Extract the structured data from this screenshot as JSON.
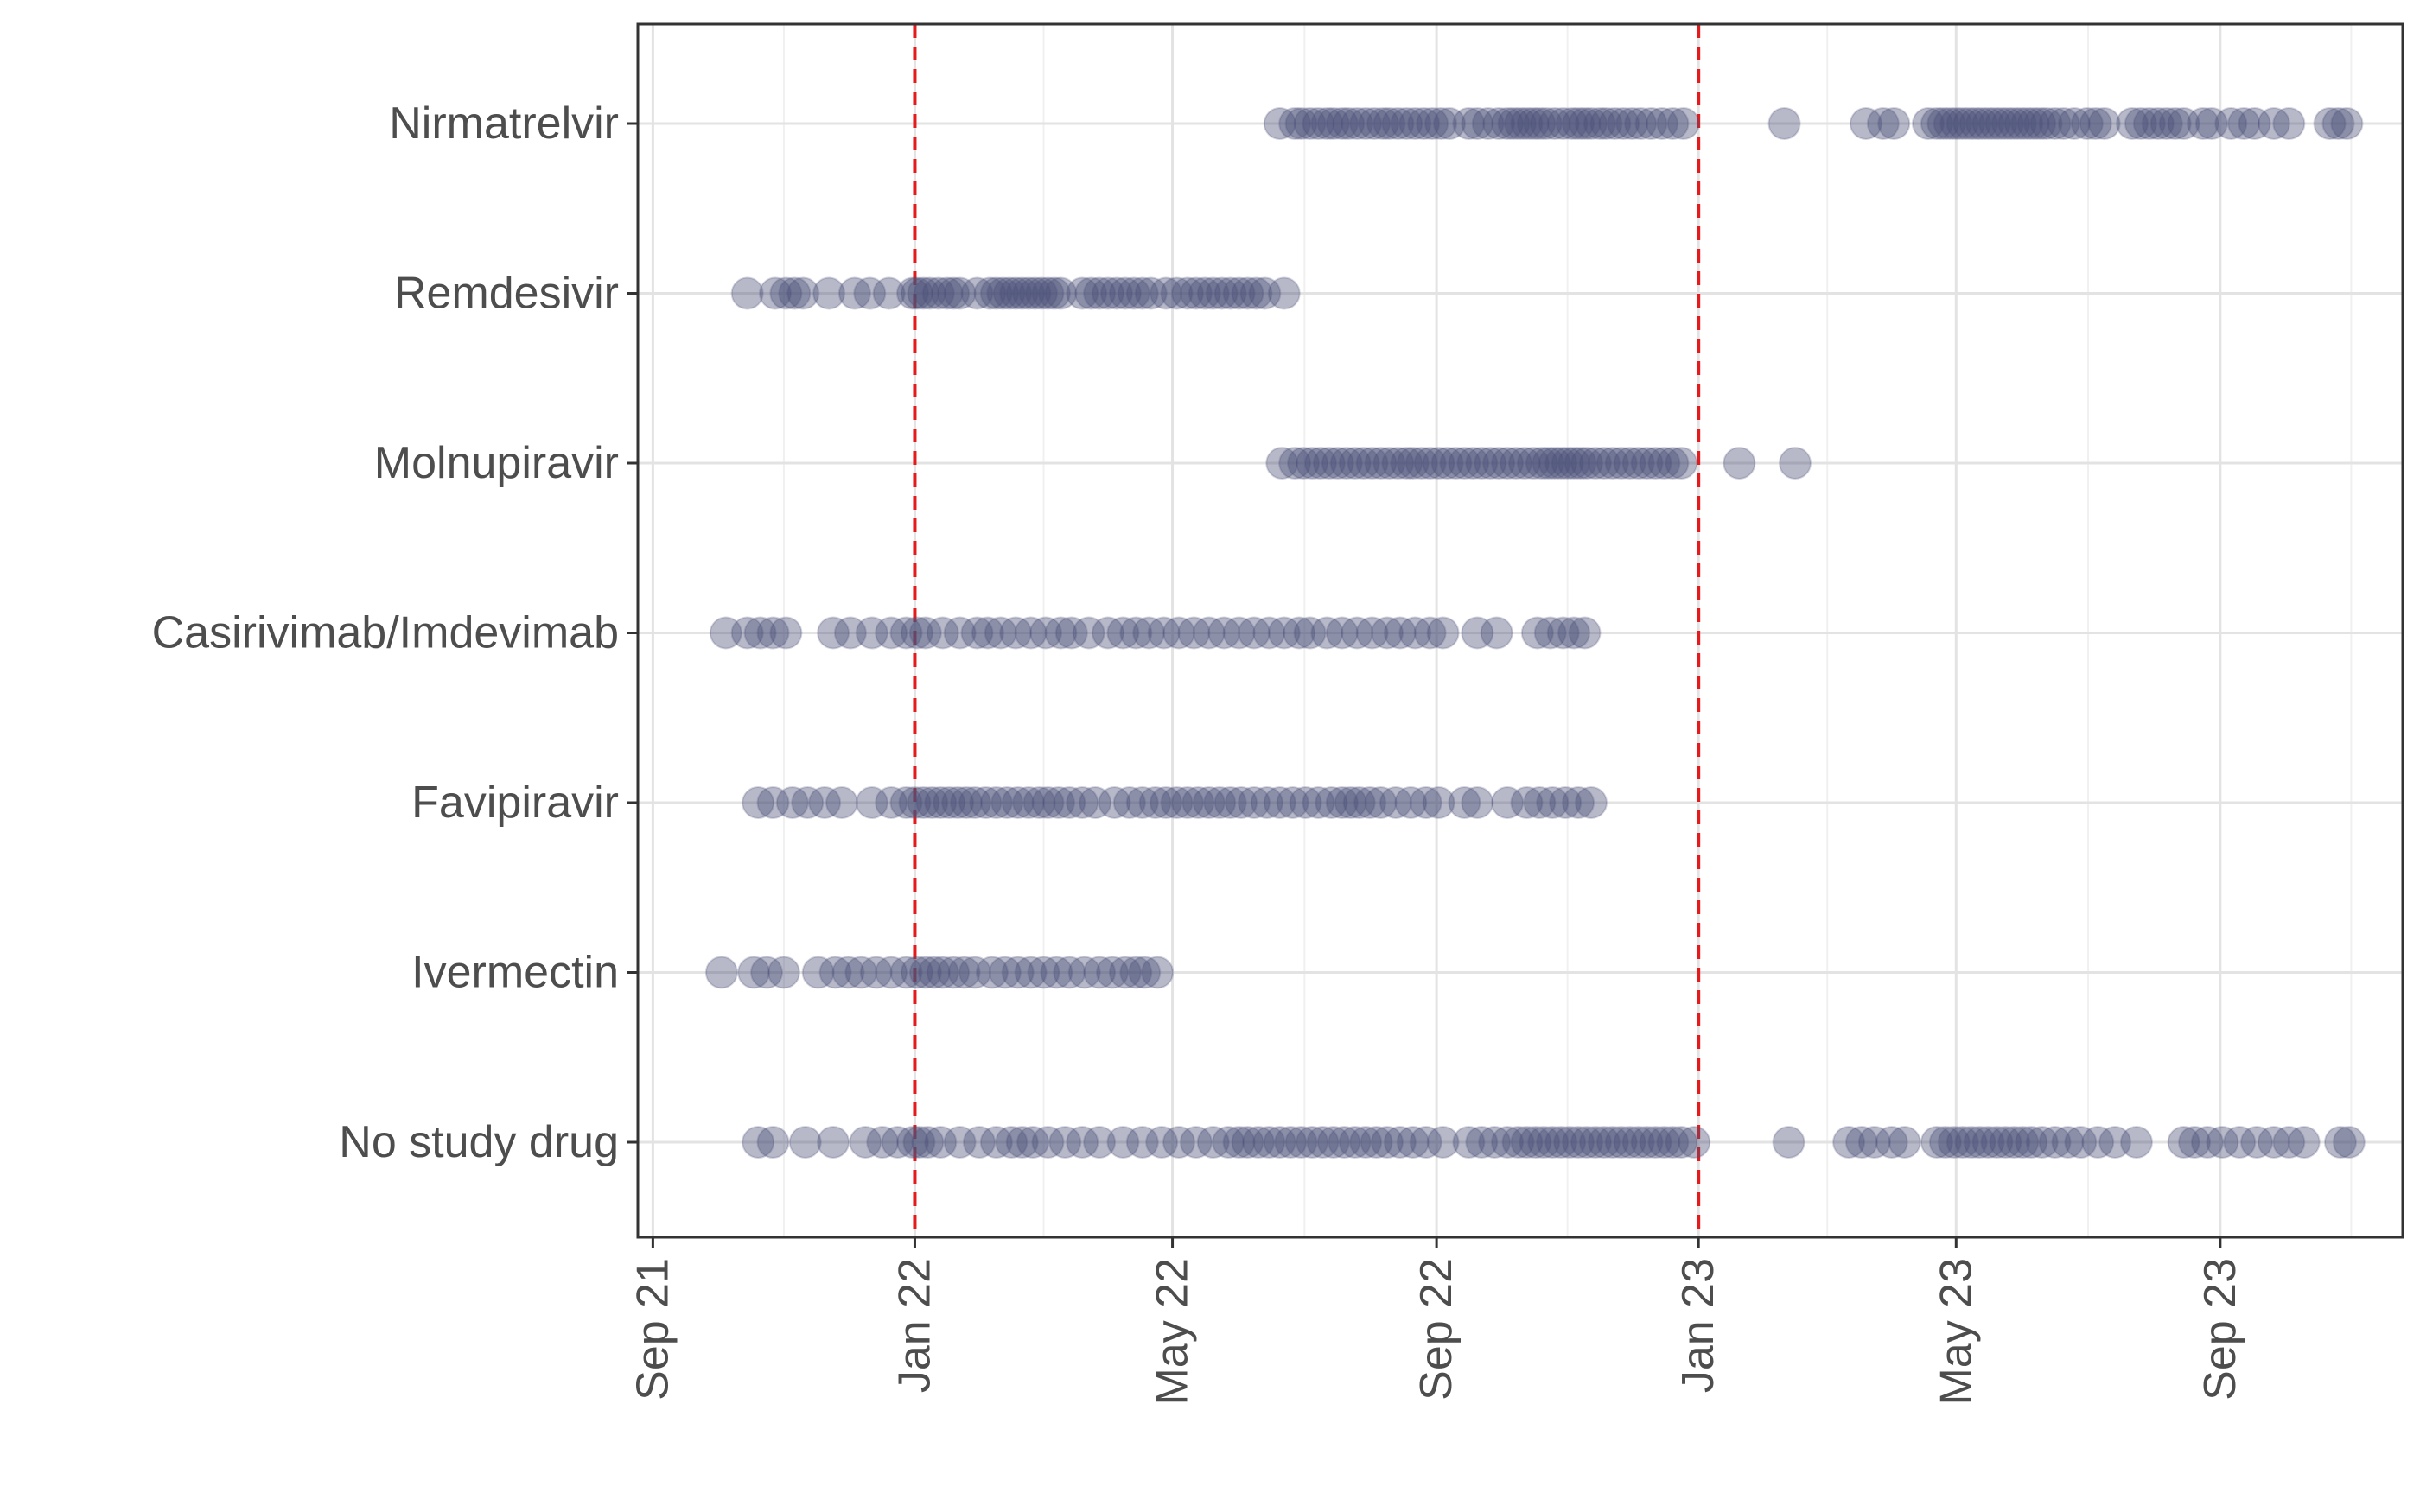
{
  "chart_data": {
    "type": "scatter",
    "title": "",
    "xlabel": "",
    "ylabel": "",
    "x_axis": {
      "type": "date",
      "range": [
        "2021-08-25",
        "2023-11-25"
      ],
      "ticks": [
        {
          "date": "2021-09-01",
          "label": "Sep 21"
        },
        {
          "date": "2022-01-01",
          "label": "Jan 22"
        },
        {
          "date": "2022-05-01",
          "label": "May 22"
        },
        {
          "date": "2022-09-01",
          "label": "Sep 22"
        },
        {
          "date": "2023-01-01",
          "label": "Jan 23"
        },
        {
          "date": "2023-05-01",
          "label": "May 23"
        },
        {
          "date": "2023-09-01",
          "label": "Sep 23"
        }
      ]
    },
    "reference_lines": [
      {
        "date": "2022-01-01",
        "color": "#e41a1c",
        "style": "dashed"
      },
      {
        "date": "2023-01-01",
        "color": "#e41a1c",
        "style": "dashed"
      }
    ],
    "grid": true,
    "point_color": "#4a5078",
    "point_opacity": 0.4,
    "categories": [
      "Nirmatrelvir",
      "Remdesivir",
      "Molnupiravir",
      "Casirivimab/Imdevimab",
      "Favipiravir",
      "Ivermectin",
      "No study drug"
    ],
    "series": [
      {
        "category": "Nirmatrelvir",
        "dates": [
          "2022-06-20",
          "2022-06-27",
          "2022-06-30",
          "2022-07-04",
          "2022-07-08",
          "2022-07-12",
          "2022-07-15",
          "2022-07-19",
          "2022-07-22",
          "2022-07-26",
          "2022-07-30",
          "2022-08-03",
          "2022-08-07",
          "2022-08-10",
          "2022-08-14",
          "2022-08-18",
          "2022-08-22",
          "2022-08-26",
          "2022-08-30",
          "2022-09-03",
          "2022-09-07",
          "2022-09-16",
          "2022-09-20",
          "2022-09-25",
          "2022-09-30",
          "2022-10-04",
          "2022-10-07",
          "2022-10-10",
          "2022-10-13",
          "2022-10-16",
          "2022-10-19",
          "2022-10-22",
          "2022-10-26",
          "2022-10-30",
          "2022-11-03",
          "2022-11-06",
          "2022-11-09",
          "2022-11-12",
          "2022-11-16",
          "2022-11-19",
          "2022-11-23",
          "2022-11-27",
          "2022-12-01",
          "2022-12-05",
          "2022-12-10",
          "2022-12-15",
          "2022-12-20",
          "2022-12-25",
          "2023-02-10",
          "2023-03-20",
          "2023-03-28",
          "2023-04-02",
          "2023-04-18",
          "2023-04-22",
          "2023-04-25",
          "2023-04-28",
          "2023-05-01",
          "2023-05-04",
          "2023-05-07",
          "2023-05-10",
          "2023-05-13",
          "2023-05-16",
          "2023-05-19",
          "2023-05-22",
          "2023-05-25",
          "2023-05-28",
          "2023-05-31",
          "2023-06-03",
          "2023-06-06",
          "2023-06-09",
          "2023-06-12",
          "2023-06-16",
          "2023-06-20",
          "2023-06-25",
          "2023-07-01",
          "2023-07-05",
          "2023-07-09",
          "2023-07-22",
          "2023-07-26",
          "2023-07-30",
          "2023-08-03",
          "2023-08-07",
          "2023-08-11",
          "2023-08-15",
          "2023-08-24",
          "2023-08-28",
          "2023-09-06",
          "2023-09-12",
          "2023-09-17",
          "2023-09-26",
          "2023-10-03",
          "2023-10-22",
          "2023-10-26",
          "2023-10-30"
        ]
      },
      {
        "category": "Remdesivir",
        "dates": [
          "2021-10-15",
          "2021-10-28",
          "2021-11-02",
          "2021-11-06",
          "2021-11-10",
          "2021-11-22",
          "2021-12-04",
          "2021-12-11",
          "2021-12-20",
          "2021-12-31",
          "2022-01-02",
          "2022-01-05",
          "2022-01-08",
          "2022-01-12",
          "2022-01-16",
          "2022-01-19",
          "2022-01-22",
          "2022-01-30",
          "2022-02-05",
          "2022-02-08",
          "2022-02-11",
          "2022-02-14",
          "2022-02-17",
          "2022-02-20",
          "2022-02-23",
          "2022-02-26",
          "2022-03-01",
          "2022-03-04",
          "2022-03-07",
          "2022-03-10",
          "2022-03-20",
          "2022-03-24",
          "2022-03-28",
          "2022-04-01",
          "2022-04-05",
          "2022-04-09",
          "2022-04-13",
          "2022-04-17",
          "2022-04-21",
          "2022-04-28",
          "2022-05-03",
          "2022-05-08",
          "2022-05-12",
          "2022-05-16",
          "2022-05-20",
          "2022-05-24",
          "2022-05-28",
          "2022-06-01",
          "2022-06-05",
          "2022-06-09",
          "2022-06-13",
          "2022-06-22"
        ]
      },
      {
        "category": "Molnupiravir",
        "dates": [
          "2022-06-21",
          "2022-06-27",
          "2022-07-01",
          "2022-07-05",
          "2022-07-09",
          "2022-07-13",
          "2022-07-17",
          "2022-07-21",
          "2022-07-25",
          "2022-07-29",
          "2022-08-02",
          "2022-08-06",
          "2022-08-10",
          "2022-08-14",
          "2022-08-18",
          "2022-08-21",
          "2022-08-25",
          "2022-08-29",
          "2022-09-02",
          "2022-09-06",
          "2022-09-10",
          "2022-09-14",
          "2022-09-18",
          "2022-09-22",
          "2022-09-26",
          "2022-09-30",
          "2022-10-04",
          "2022-10-08",
          "2022-10-12",
          "2022-10-16",
          "2022-10-20",
          "2022-10-23",
          "2022-10-26",
          "2022-10-29",
          "2022-11-01",
          "2022-11-04",
          "2022-11-07",
          "2022-11-10",
          "2022-11-14",
          "2022-11-18",
          "2022-11-22",
          "2022-11-26",
          "2022-11-30",
          "2022-12-04",
          "2022-12-08",
          "2022-12-12",
          "2022-12-16",
          "2022-12-20",
          "2022-12-24",
          "2023-01-20",
          "2023-02-15"
        ]
      },
      {
        "category": "Casirivimab/Imdevimab",
        "dates": [
          "2021-10-05",
          "2021-10-15",
          "2021-10-21",
          "2021-10-27",
          "2021-11-02",
          "2021-11-24",
          "2021-12-02",
          "2021-12-12",
          "2021-12-21",
          "2021-12-28",
          "2022-01-02",
          "2022-01-06",
          "2022-01-14",
          "2022-01-22",
          "2022-01-30",
          "2022-02-04",
          "2022-02-10",
          "2022-02-17",
          "2022-02-24",
          "2022-03-03",
          "2022-03-10",
          "2022-03-15",
          "2022-03-23",
          "2022-04-01",
          "2022-04-08",
          "2022-04-14",
          "2022-04-20",
          "2022-04-27",
          "2022-05-04",
          "2022-05-11",
          "2022-05-18",
          "2022-05-25",
          "2022-06-01",
          "2022-06-08",
          "2022-06-15",
          "2022-06-22",
          "2022-06-29",
          "2022-07-04",
          "2022-07-12",
          "2022-07-19",
          "2022-07-26",
          "2022-08-02",
          "2022-08-09",
          "2022-08-15",
          "2022-08-22",
          "2022-08-29",
          "2022-09-04",
          "2022-09-20",
          "2022-09-29",
          "2022-10-18",
          "2022-10-24",
          "2022-10-30",
          "2022-11-04",
          "2022-11-09"
        ]
      },
      {
        "category": "Favipiravir",
        "dates": [
          "2021-10-20",
          "2021-10-27",
          "2021-11-05",
          "2021-11-12",
          "2021-11-20",
          "2021-11-28",
          "2021-12-12",
          "2021-12-21",
          "2021-12-28",
          "2022-01-01",
          "2022-01-05",
          "2022-01-09",
          "2022-01-13",
          "2022-01-17",
          "2022-01-21",
          "2022-01-25",
          "2022-01-29",
          "2022-02-03",
          "2022-02-08",
          "2022-02-13",
          "2022-02-18",
          "2022-02-23",
          "2022-02-28",
          "2022-03-04",
          "2022-03-09",
          "2022-03-14",
          "2022-03-20",
          "2022-03-26",
          "2022-04-04",
          "2022-04-11",
          "2022-04-17",
          "2022-04-23",
          "2022-04-28",
          "2022-05-03",
          "2022-05-08",
          "2022-05-13",
          "2022-05-18",
          "2022-05-23",
          "2022-05-28",
          "2022-06-02",
          "2022-06-08",
          "2022-06-14",
          "2022-06-20",
          "2022-06-26",
          "2022-07-02",
          "2022-07-08",
          "2022-07-14",
          "2022-07-19",
          "2022-07-23",
          "2022-07-27",
          "2022-08-01",
          "2022-08-06",
          "2022-08-13",
          "2022-08-20",
          "2022-08-27",
          "2022-09-02",
          "2022-09-14",
          "2022-09-20",
          "2022-10-04",
          "2022-10-13",
          "2022-10-19",
          "2022-10-25",
          "2022-10-31",
          "2022-11-06",
          "2022-11-12"
        ]
      },
      {
        "category": "Ivermectin",
        "dates": [
          "2021-10-03",
          "2021-10-18",
          "2021-10-24",
          "2021-11-01",
          "2021-11-17",
          "2021-11-25",
          "2021-12-01",
          "2021-12-07",
          "2021-12-14",
          "2021-12-21",
          "2021-12-28",
          "2022-01-02",
          "2022-01-06",
          "2022-01-10",
          "2022-01-14",
          "2022-01-19",
          "2022-01-24",
          "2022-01-29",
          "2022-02-06",
          "2022-02-12",
          "2022-02-18",
          "2022-02-24",
          "2022-03-02",
          "2022-03-08",
          "2022-03-14",
          "2022-03-21",
          "2022-03-28",
          "2022-04-03",
          "2022-04-09",
          "2022-04-14",
          "2022-04-18",
          "2022-04-24"
        ]
      },
      {
        "category": "No study drug",
        "dates": [
          "2021-10-20",
          "2021-10-27",
          "2021-11-11",
          "2021-11-24",
          "2021-12-09",
          "2021-12-17",
          "2021-12-24",
          "2021-12-31",
          "2022-01-03",
          "2022-01-07",
          "2022-01-13",
          "2022-01-22",
          "2022-01-31",
          "2022-02-08",
          "2022-02-15",
          "2022-02-20",
          "2022-02-25",
          "2022-03-04",
          "2022-03-12",
          "2022-03-20",
          "2022-03-28",
          "2022-04-08",
          "2022-04-17",
          "2022-04-26",
          "2022-05-04",
          "2022-05-12",
          "2022-05-20",
          "2022-05-27",
          "2022-06-01",
          "2022-06-05",
          "2022-06-10",
          "2022-06-15",
          "2022-06-20",
          "2022-06-25",
          "2022-06-30",
          "2022-07-05",
          "2022-07-10",
          "2022-07-15",
          "2022-07-20",
          "2022-07-25",
          "2022-07-30",
          "2022-08-04",
          "2022-08-09",
          "2022-08-15",
          "2022-08-21",
          "2022-08-27",
          "2022-09-04",
          "2022-09-16",
          "2022-09-22",
          "2022-09-28",
          "2022-10-04",
          "2022-10-09",
          "2022-10-13",
          "2022-10-17",
          "2022-10-21",
          "2022-10-25",
          "2022-10-29",
          "2022-11-02",
          "2022-11-06",
          "2022-11-10",
          "2022-11-14",
          "2022-11-18",
          "2022-11-22",
          "2022-11-26",
          "2022-11-30",
          "2022-12-04",
          "2022-12-08",
          "2022-12-12",
          "2022-12-16",
          "2022-12-20",
          "2022-12-24",
          "2022-12-30",
          "2023-02-12",
          "2023-03-12",
          "2023-03-18",
          "2023-03-24",
          "2023-04-01",
          "2023-04-07",
          "2023-04-22",
          "2023-04-26",
          "2023-04-30",
          "2023-05-04",
          "2023-05-08",
          "2023-05-12",
          "2023-05-16",
          "2023-05-20",
          "2023-05-24",
          "2023-05-28",
          "2023-06-01",
          "2023-06-05",
          "2023-06-10",
          "2023-06-16",
          "2023-06-22",
          "2023-06-28",
          "2023-07-06",
          "2023-07-14",
          "2023-07-24",
          "2023-08-15",
          "2023-08-20",
          "2023-08-26",
          "2023-09-02",
          "2023-09-10",
          "2023-09-18",
          "2023-09-26",
          "2023-10-03",
          "2023-10-10",
          "2023-10-27",
          "2023-10-31"
        ]
      }
    ]
  }
}
